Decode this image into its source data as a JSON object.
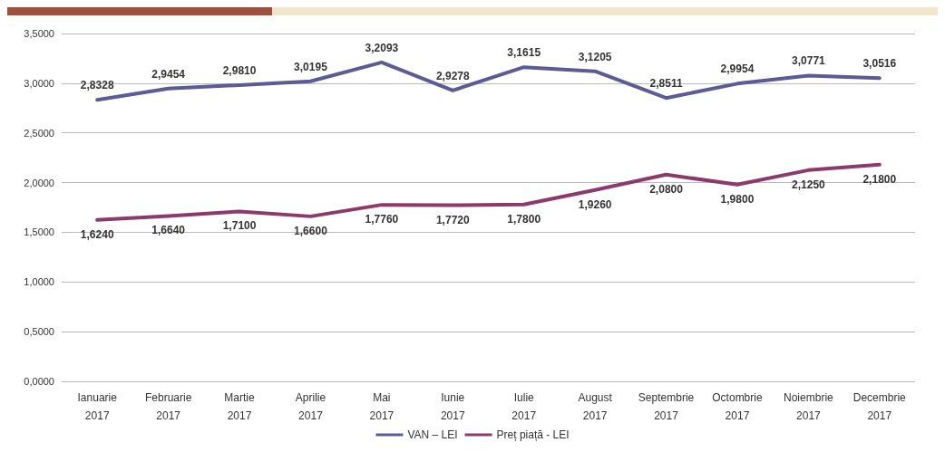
{
  "chart_data": {
    "type": "line",
    "categories": [
      "Ianuarie\n2017",
      "Februarie\n2017",
      "Martie\n2017",
      "Aprilie\n2017",
      "Mai\n2017",
      "Iunie\n2017",
      "Iulie\n2017",
      "August\n2017",
      "Septembrie\n2017",
      "Octombrie\n2017",
      "Noiembrie\n2017",
      "Decembrie\n2017"
    ],
    "series": [
      {
        "name": "VAN – LEI",
        "color": "#5b5b96",
        "values": [
          2.8328,
          2.9454,
          2.981,
          3.0195,
          3.2093,
          2.9278,
          3.1615,
          3.1205,
          2.8511,
          2.9954,
          3.0771,
          3.0516
        ],
        "value_labels": [
          "2,8328",
          "2,9454",
          "2,9810",
          "3,0195",
          "3,2093",
          "2,9278",
          "3,1615",
          "3,1205",
          "2,8511",
          "2,9954",
          "3,0771",
          "3,0516"
        ]
      },
      {
        "name": "Preț piață - LEI",
        "color": "#8b3a6b",
        "values": [
          1.624,
          1.664,
          1.71,
          1.66,
          1.776,
          1.772,
          1.78,
          1.926,
          2.08,
          1.98,
          2.125,
          2.18
        ],
        "value_labels": [
          "1,6240",
          "1,6640",
          "1,7100",
          "1,6600",
          "1,7760",
          "1,7720",
          "1,7800",
          "1,9260",
          "2,0800",
          "1,9800",
          "2,1250",
          "2,1800"
        ]
      }
    ],
    "ylim": [
      0,
      3.5
    ],
    "yticks": [
      {
        "value": 0,
        "label": "0,0000"
      },
      {
        "value": 0.5,
        "label": "0,5000"
      },
      {
        "value": 1,
        "label": "1,0000"
      },
      {
        "value": 1.5,
        "label": "1,5000"
      },
      {
        "value": 2,
        "label": "2,0000"
      },
      {
        "value": 2.5,
        "label": "2,5000"
      },
      {
        "value": 3,
        "label": "3,0000"
      },
      {
        "value": 3.5,
        "label": "3,5000"
      }
    ],
    "grid": "y",
    "legend": "bottom",
    "marker": "none",
    "line_style": "solid"
  }
}
